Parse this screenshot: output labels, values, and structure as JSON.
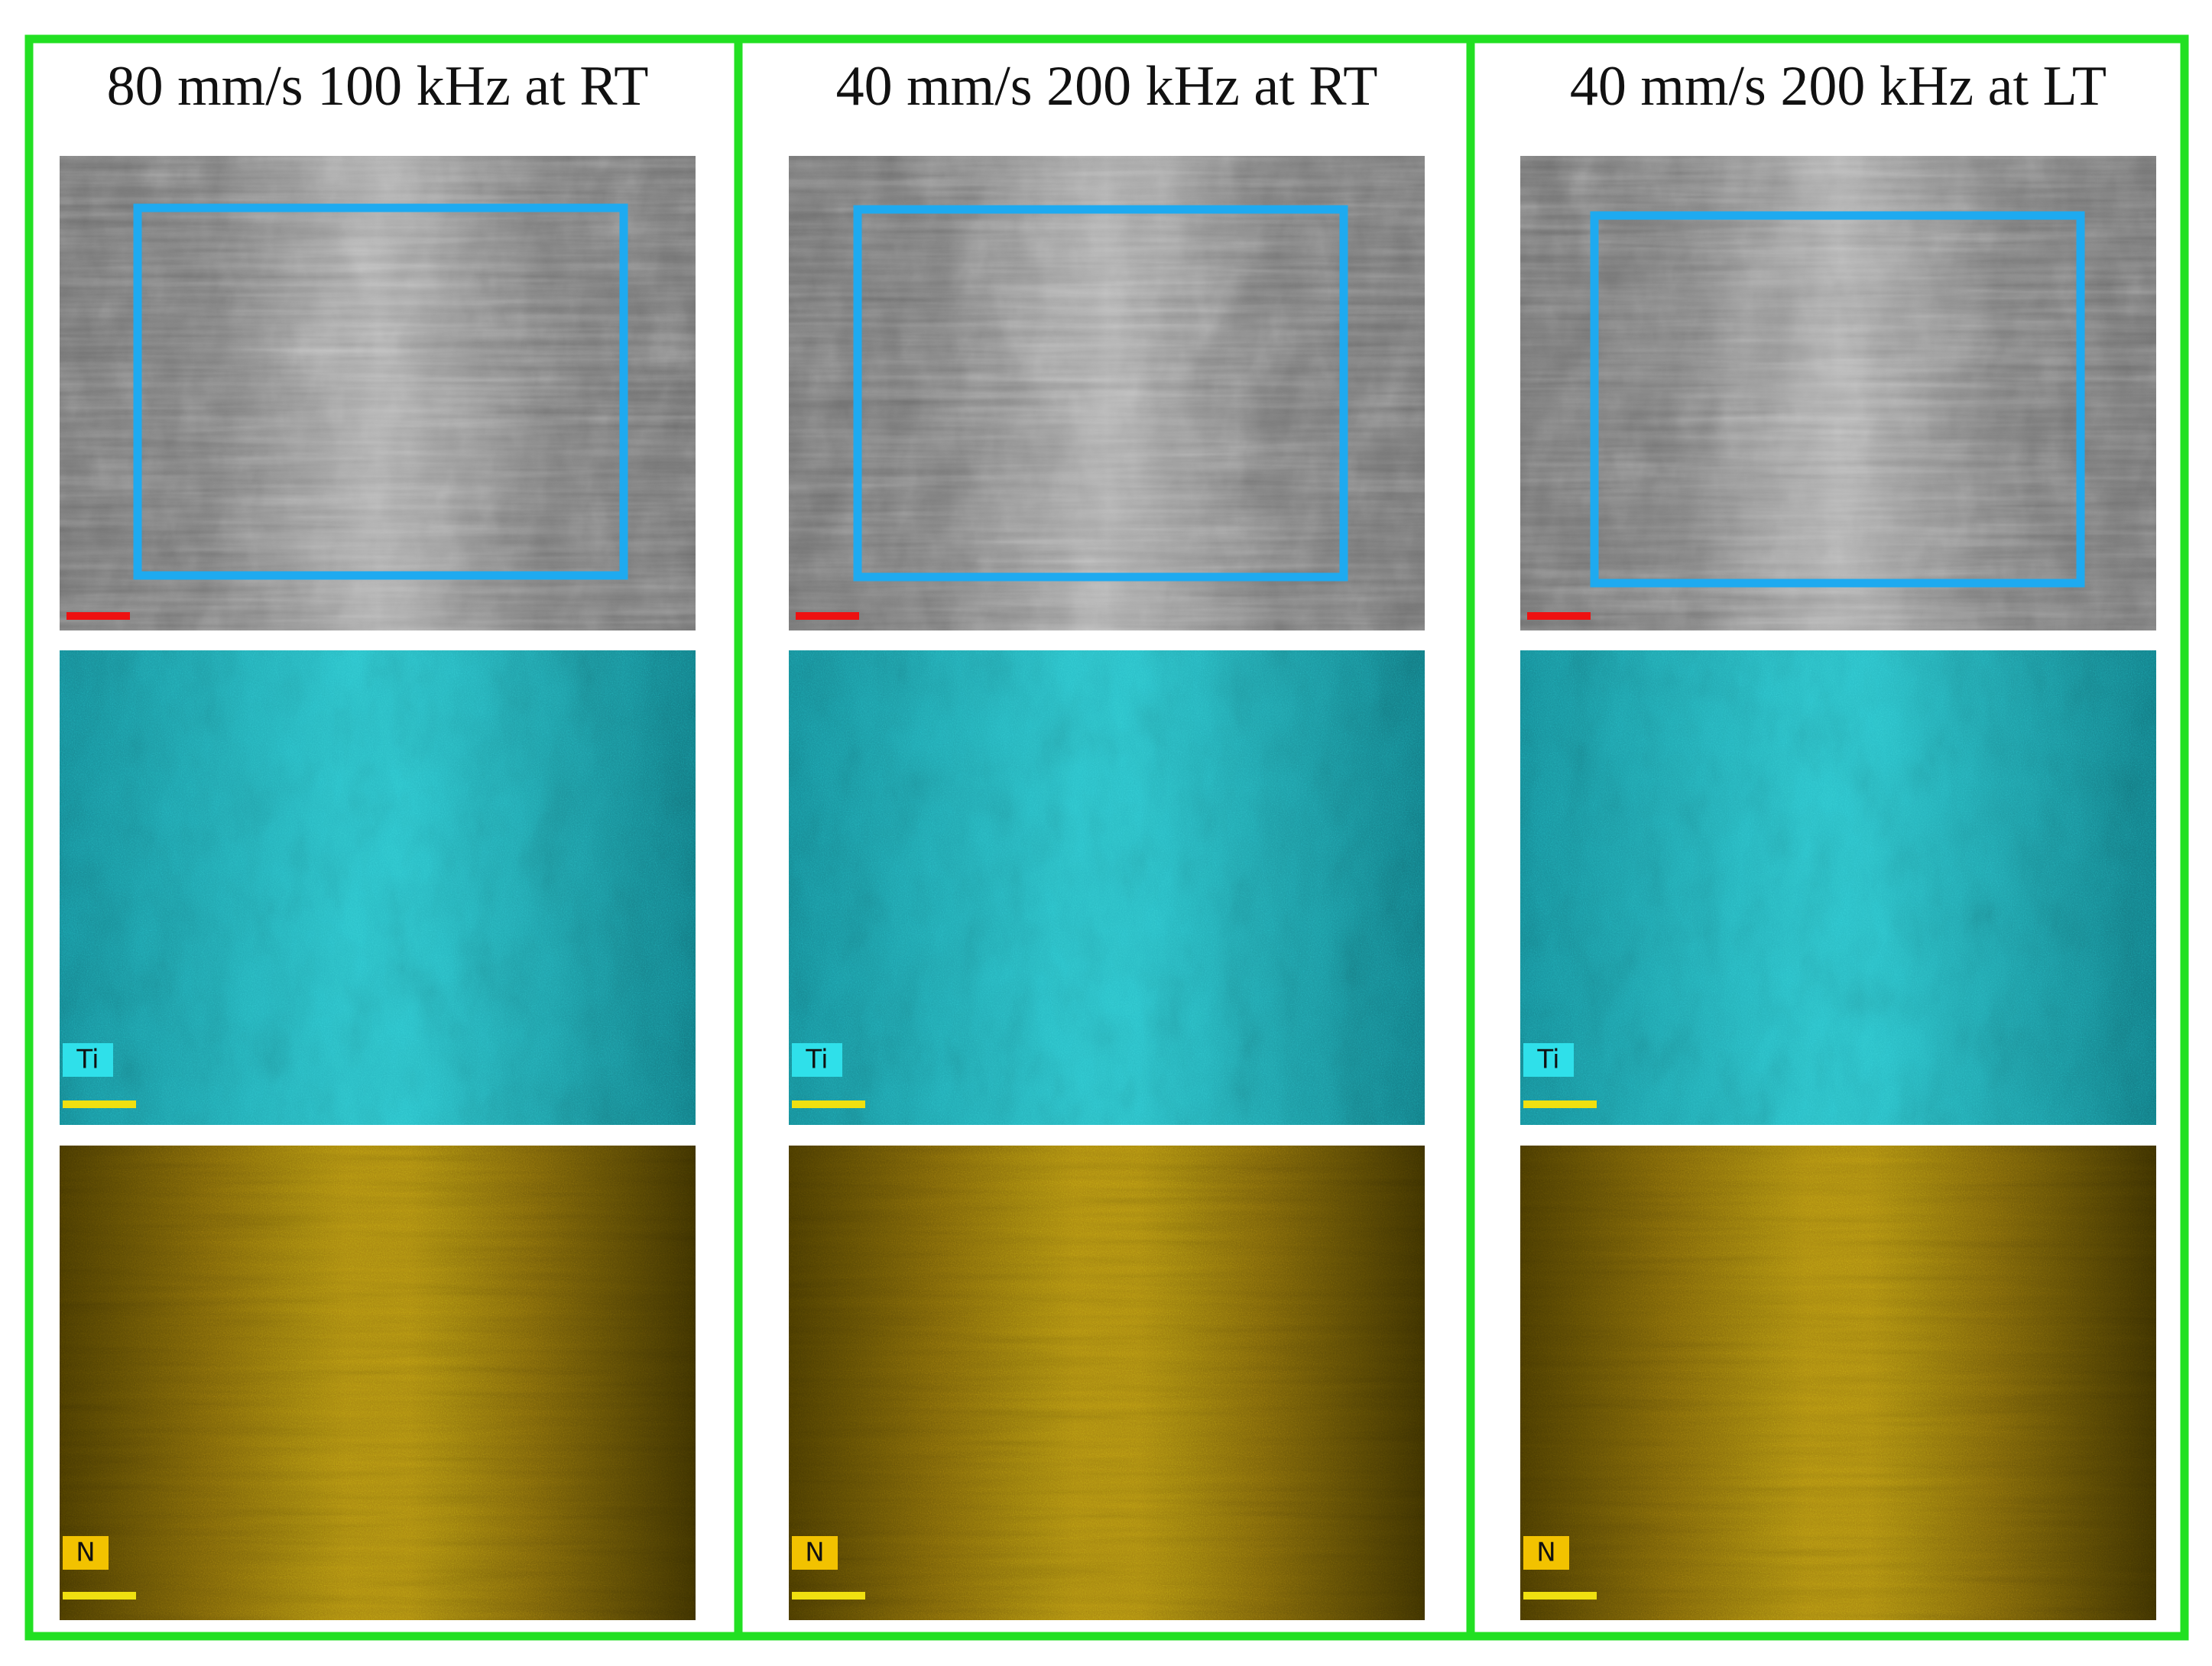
{
  "panels": [
    {
      "title": "80 mm/s 100 kHz at RT",
      "ti_label": "Ti",
      "n_label": "N"
    },
    {
      "title": "40 mm/s 200 kHz at RT",
      "ti_label": "Ti",
      "n_label": "N"
    },
    {
      "title": "40 mm/s 200 kHz at LT",
      "ti_label": "Ti",
      "n_label": "N"
    }
  ]
}
